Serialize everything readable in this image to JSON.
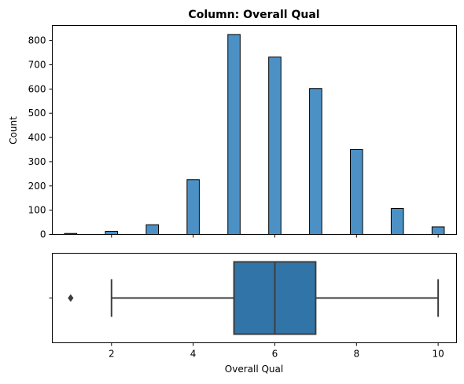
{
  "chart_data": [
    {
      "type": "bar",
      "subtype": "histogram",
      "title": "Column: Overall Qual",
      "xlabel": "",
      "ylabel": "Count",
      "xlim": [
        0.55,
        10.45
      ],
      "ylim": [
        0,
        862
      ],
      "bin_width": 0.3,
      "bars": [
        {
          "x": 1,
          "value": 4
        },
        {
          "x": 2,
          "value": 13
        },
        {
          "x": 3,
          "value": 40
        },
        {
          "x": 4,
          "value": 226
        },
        {
          "x": 5,
          "value": 825
        },
        {
          "x": 6,
          "value": 732
        },
        {
          "x": 7,
          "value": 602
        },
        {
          "x": 8,
          "value": 350
        },
        {
          "x": 9,
          "value": 107
        },
        {
          "x": 10,
          "value": 31
        }
      ],
      "xticks": [
        2,
        4,
        6,
        8,
        10
      ],
      "yticks": [
        0,
        100,
        200,
        300,
        400,
        500,
        600,
        700,
        800
      ],
      "bar_color": "#4c91c5",
      "grid": false
    },
    {
      "type": "box",
      "xlabel": "Overall Qual",
      "xlim": [
        0.55,
        10.45
      ],
      "whisker_low": 2,
      "q1": 5,
      "median": 6,
      "q3": 7,
      "whisker_high": 10,
      "outliers": [
        1
      ],
      "xticks": [
        2,
        4,
        6,
        8,
        10
      ],
      "box_color": "#3174a8",
      "grid": false
    }
  ]
}
